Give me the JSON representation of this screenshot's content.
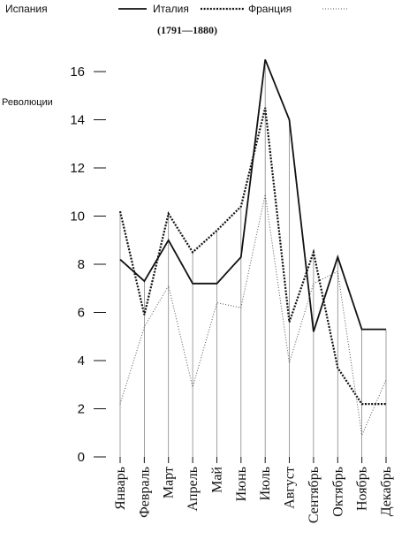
{
  "chart_data": {
    "type": "line",
    "subtitle": "(1791—1880)",
    "ylabel": "Революции",
    "xlabel": "",
    "ylim": [
      0,
      16
    ],
    "yticks": [
      0,
      2,
      4,
      6,
      8,
      10,
      12,
      14,
      16
    ],
    "categories": [
      "Январь",
      "Февраль",
      "Март",
      "Апрель",
      "Май",
      "Июнь",
      "Июль",
      "Август",
      "Сентябрь",
      "Октябрь",
      "Ноябрь",
      "Декабрь"
    ],
    "legend_position": "top-left",
    "grid": false,
    "series": [
      {
        "name": "Испания",
        "style": "solid",
        "color": "#111111",
        "values": [
          8.2,
          7.3,
          9.0,
          7.2,
          7.2,
          8.3,
          16.5,
          14.0,
          5.2,
          8.3,
          5.3,
          5.3
        ]
      },
      {
        "name": "Италия",
        "style": "dotted",
        "color": "#111111",
        "values": [
          10.2,
          5.9,
          10.1,
          8.5,
          9.4,
          10.4,
          14.5,
          5.6,
          8.5,
          3.7,
          2.2,
          2.2
        ]
      },
      {
        "name": "Франция",
        "style": "fine-dotted",
        "color": "#555555",
        "values": [
          2.2,
          5.4,
          7.1,
          2.9,
          6.4,
          6.2,
          10.9,
          3.9,
          7.2,
          7.7,
          0.9,
          3.2
        ]
      }
    ]
  }
}
